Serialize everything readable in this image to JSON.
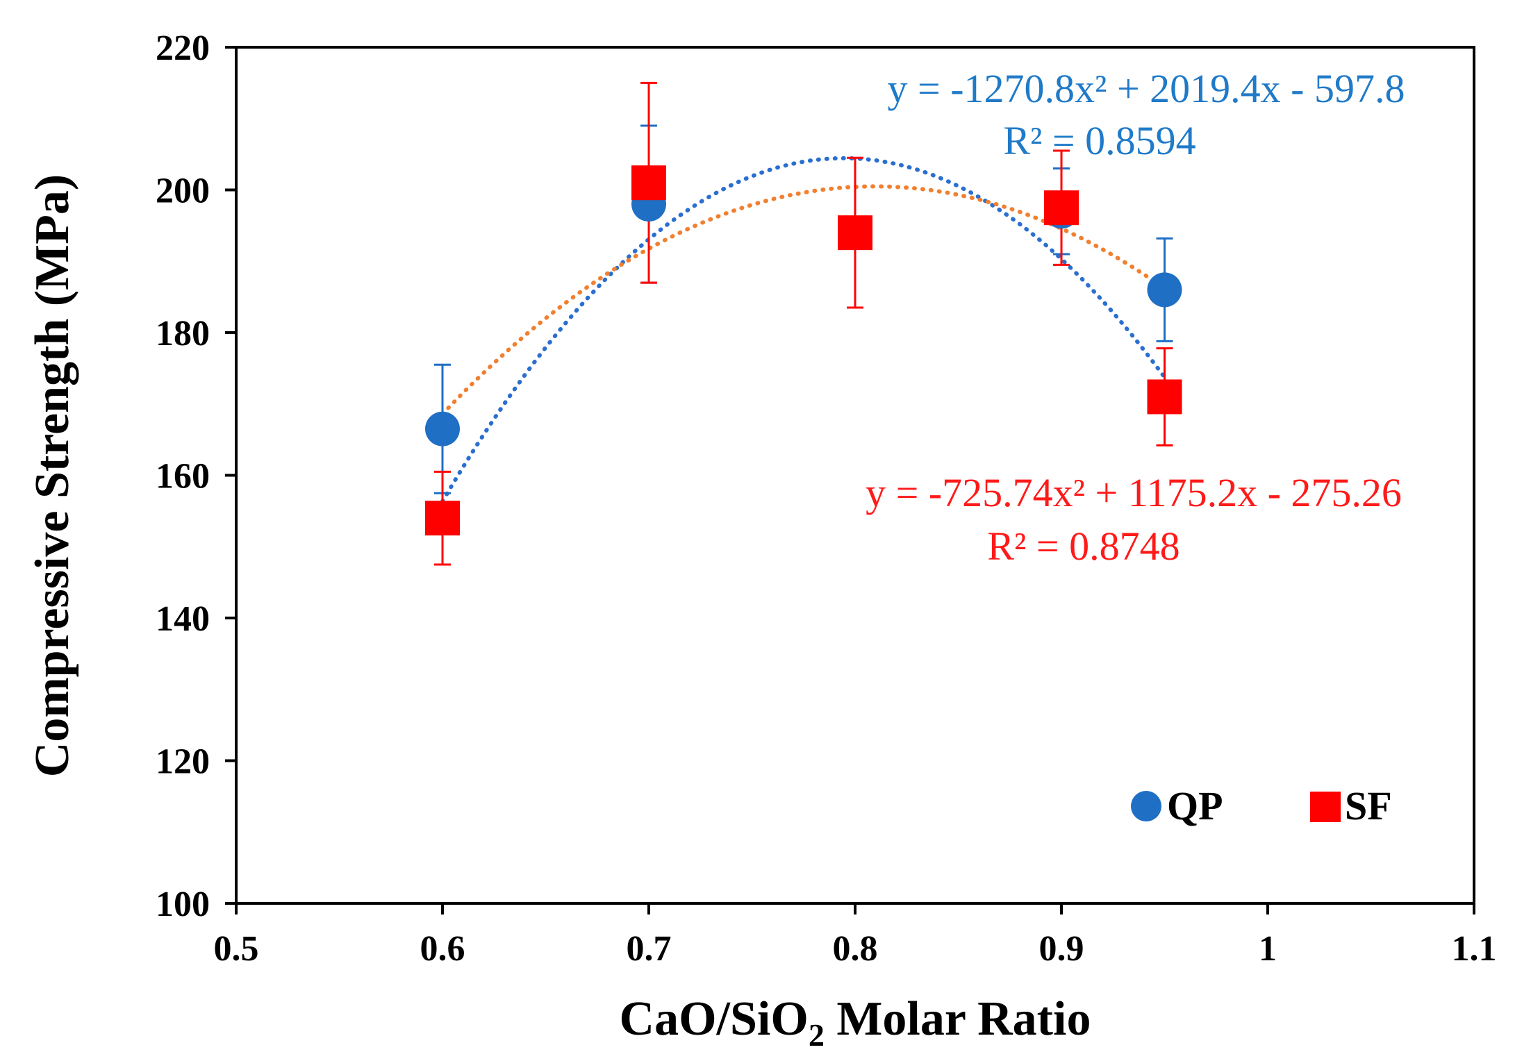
{
  "chart_data": {
    "type": "scatter",
    "title": "",
    "xlabel_main": "CaO/SiO",
    "xlabel_sub": "2",
    "xlabel_rest": " Molar Ratio",
    "ylabel": "Compressive Strength (MPa)",
    "xlim": [
      0.5,
      1.1
    ],
    "ylim": [
      100,
      220
    ],
    "xticks": [
      0.5,
      0.6,
      0.7,
      0.8,
      0.9,
      1.0,
      1.1
    ],
    "xtick_labels": [
      "0.5",
      "0.6",
      "0.7",
      "0.8",
      "0.9",
      "1",
      "1.1"
    ],
    "yticks": [
      100,
      120,
      140,
      160,
      180,
      200,
      220
    ],
    "ytick_labels": [
      "100",
      "120",
      "140",
      "160",
      "180",
      "200",
      "220"
    ],
    "grid": false,
    "legend_position": "bottom-right",
    "series": [
      {
        "name": "QP",
        "marker": "circle",
        "color": "#1f6fc5",
        "errorbar_color": "#1f6fc5",
        "trend_color": "#2a6fd0",
        "x": [
          0.6,
          0.7,
          0.9,
          0.95
        ],
        "y": [
          166.5,
          198.0,
          197.0,
          186.0
        ],
        "err": [
          9.0,
          11.0,
          6.0,
          7.2
        ],
        "fit": {
          "a": -1270.8,
          "b": 2019.4,
          "c": -597.8,
          "range": [
            0.6,
            0.95
          ]
        },
        "equation": "y = -1270.8x² + 2019.4x - 597.8",
        "r2": "R² = 0.8594"
      },
      {
        "name": "SF",
        "marker": "square",
        "color": "#ff0000",
        "errorbar_color": "#ff0000",
        "trend_color": "#f08030",
        "x": [
          0.6,
          0.7,
          0.8,
          0.9,
          0.95
        ],
        "y": [
          154.0,
          201.0,
          194.0,
          197.5,
          171.0
        ],
        "err": [
          6.5,
          14.0,
          10.5,
          8.0,
          6.8
        ],
        "fit": {
          "a": -725.74,
          "b": 1175.2,
          "c": -275.26,
          "range": [
            0.6,
            0.95
          ]
        },
        "equation": "y = -725.74x² + 1175.2x - 275.26",
        "r2": "R² = 0.8748"
      }
    ]
  }
}
